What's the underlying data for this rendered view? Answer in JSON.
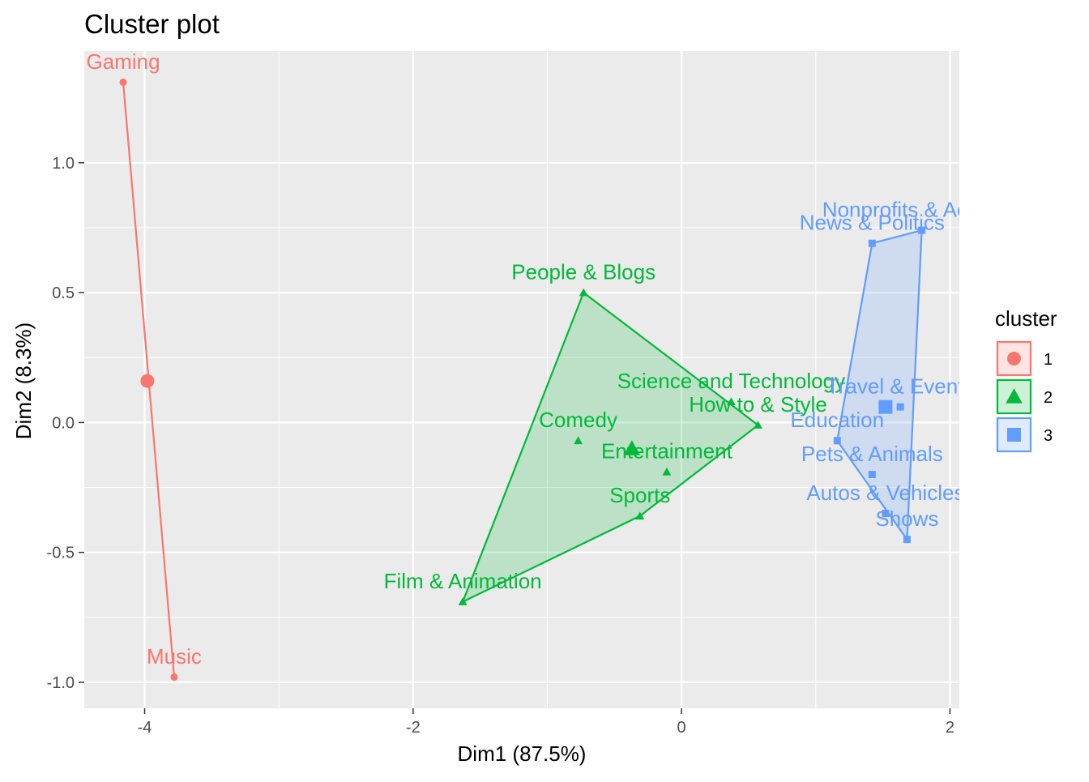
{
  "chart_data": {
    "type": "scatter",
    "title": "Cluster plot",
    "xlabel": "Dim1 (87.5%)",
    "ylabel": "Dim2 (8.3%)",
    "xlim": [
      -4.45,
      2.07
    ],
    "ylim": [
      -1.1,
      1.43
    ],
    "x_ticks": [
      -4,
      -2,
      0,
      2
    ],
    "x_tick_labels": [
      "-4",
      "-2",
      "0",
      "2"
    ],
    "y_ticks": [
      -1.0,
      -0.5,
      0.0,
      0.5,
      1.0
    ],
    "y_tick_labels": [
      "-1.0",
      "-0.5",
      "0.0",
      "0.5",
      "1.0"
    ],
    "grid": true,
    "legend": {
      "title": "cluster",
      "position": "right",
      "entries": [
        "1",
        "2",
        "3"
      ]
    },
    "clusters": [
      {
        "name": "1",
        "color": "#F8766D",
        "shape": "circle",
        "centroid": [
          -3.98,
          0.16
        ],
        "hull": [
          [
            -4.16,
            1.31
          ],
          [
            -3.78,
            -0.98
          ]
        ],
        "points": [
          {
            "label": "Gaming",
            "x": -4.16,
            "y": 1.31,
            "lx": -4.16,
            "ly": 1.39
          },
          {
            "label": "Music",
            "x": -3.78,
            "y": -0.98,
            "lx": -3.78,
            "ly": -0.9
          }
        ]
      },
      {
        "name": "2",
        "color": "#00BA38",
        "shape": "triangle",
        "centroid": [
          -0.37,
          -0.1
        ],
        "hull": [
          [
            -0.73,
            0.5
          ],
          [
            0.57,
            -0.01
          ],
          [
            -0.31,
            -0.36
          ],
          [
            -1.63,
            -0.69
          ]
        ],
        "points": [
          {
            "label": "People & Blogs",
            "x": -0.73,
            "y": 0.5,
            "lx": -0.73,
            "ly": 0.58
          },
          {
            "label": "Science and Technology",
            "x": 0.37,
            "y": 0.08,
            "lx": 0.37,
            "ly": 0.16
          },
          {
            "label": "How to & Style",
            "x": 0.57,
            "y": -0.01,
            "lx": 0.57,
            "ly": 0.07
          },
          {
            "label": "Comedy",
            "x": -0.77,
            "y": -0.07,
            "lx": -0.77,
            "ly": 0.01
          },
          {
            "label": "Entertainment",
            "x": -0.11,
            "y": -0.19,
            "lx": -0.11,
            "ly": -0.11
          },
          {
            "label": "Sports",
            "x": -0.31,
            "y": -0.36,
            "lx": -0.31,
            "ly": -0.28
          },
          {
            "label": "Film & Animation",
            "x": -1.63,
            "y": -0.69,
            "lx": -1.63,
            "ly": -0.61
          }
        ]
      },
      {
        "name": "3",
        "color": "#619CFF",
        "shape": "square",
        "centroid": [
          1.52,
          0.06
        ],
        "hull": [
          [
            1.42,
            0.69
          ],
          [
            1.79,
            0.74
          ],
          [
            1.68,
            -0.45
          ],
          [
            1.16,
            -0.07
          ]
        ],
        "points": [
          {
            "label": "Nonprofits & Activism",
            "x": 1.79,
            "y": 0.74,
            "lx": 1.79,
            "ly": 0.82
          },
          {
            "label": "News & Politics",
            "x": 1.42,
            "y": 0.69,
            "lx": 1.42,
            "ly": 0.77
          },
          {
            "label": "Travel & Events",
            "x": 1.63,
            "y": 0.06,
            "lx": 1.63,
            "ly": 0.14
          },
          {
            "label": "Education",
            "x": 1.16,
            "y": -0.07,
            "lx": 1.16,
            "ly": 0.01
          },
          {
            "label": "Pets & Animals",
            "x": 1.42,
            "y": -0.2,
            "lx": 1.42,
            "ly": -0.12
          },
          {
            "label": "Autos & Vehicles",
            "x": 1.52,
            "y": -0.35,
            "lx": 1.52,
            "ly": -0.27
          },
          {
            "label": "Shows",
            "x": 1.68,
            "y": -0.45,
            "lx": 1.68,
            "ly": -0.37
          }
        ]
      }
    ]
  }
}
